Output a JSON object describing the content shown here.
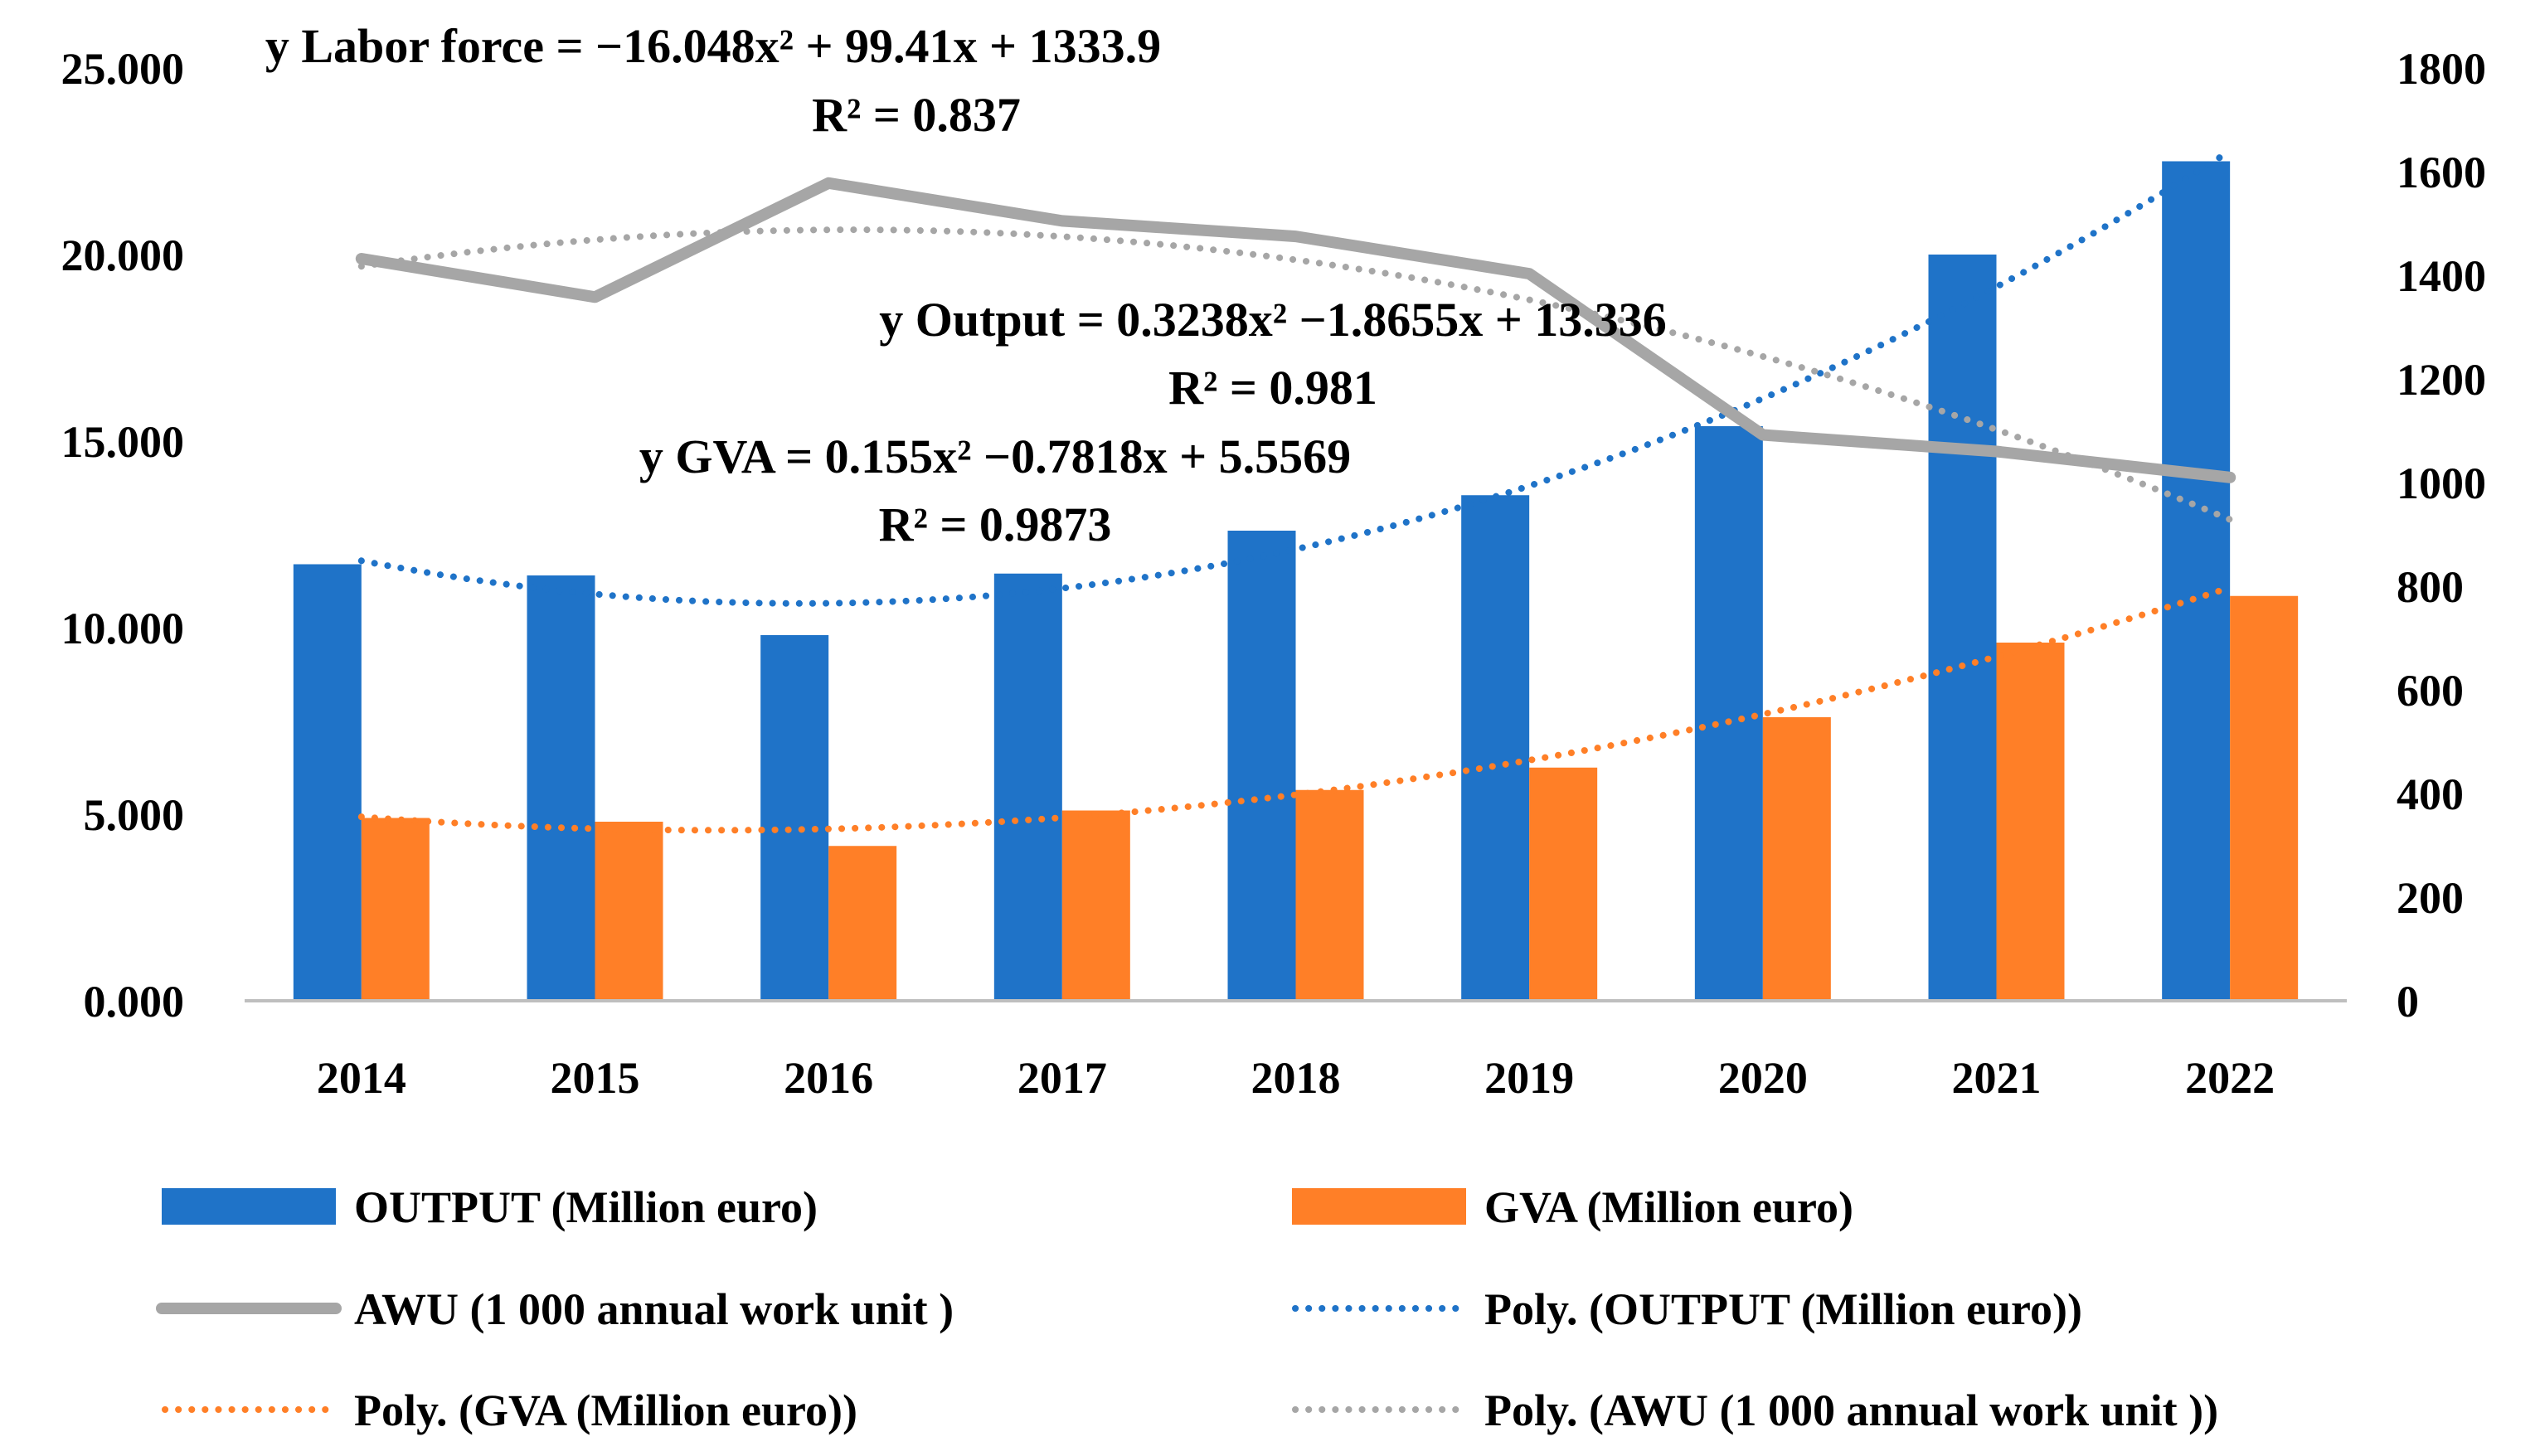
{
  "chart_data": {
    "type": "bar",
    "categories": [
      "2014",
      "2015",
      "2016",
      "2017",
      "2018",
      "2019",
      "2020",
      "2021",
      "2022"
    ],
    "series": [
      {
        "name": "OUTPUT (Million euro)",
        "kind": "bar",
        "axis": "left",
        "color": "#1F73C8",
        "values": [
          11.7,
          11.4,
          9.8,
          11.45,
          12.6,
          13.55,
          15.4,
          20.0,
          22.5
        ]
      },
      {
        "name": "GVA (Million euro)",
        "kind": "bar",
        "axis": "left",
        "color": "#FF7F27",
        "values": [
          4.9,
          4.8,
          4.15,
          5.1,
          5.65,
          6.25,
          7.6,
          9.6,
          10.85
        ]
      },
      {
        "name": "AWU (1 000 annual work unit )",
        "kind": "line",
        "axis": "right",
        "color": "#A6A6A6",
        "values": [
          1432,
          1358,
          1578,
          1505,
          1475,
          1403,
          1092,
          1060,
          1010
        ]
      }
    ],
    "trendlines": [
      {
        "name": "Poly. (OUTPUT (Million euro))",
        "of": "OUTPUT (Million euro)",
        "axis": "left",
        "color": "#1F73C8",
        "coef": [
          0.3238,
          -1.8655,
          13.336
        ],
        "equation": "y Output = 0.3238x² −1.8655x + 13.336",
        "r2": "R² = 0.981"
      },
      {
        "name": "Poly. (GVA (Million euro))",
        "of": "GVA (Million euro)",
        "axis": "left",
        "color": "#FF7F27",
        "coef": [
          0.155,
          -0.7818,
          5.5569
        ],
        "equation": "y GVA = 0.155x² −0.7818x + 5.5569",
        "r2": "R² = 0.9873"
      },
      {
        "name": "Poly. (AWU (1 000 annual work unit ))",
        "of": "AWU (1 000 annual work unit )",
        "axis": "right",
        "color": "#A6A6A6",
        "coef": [
          -16.048,
          99.41,
          1333.9
        ],
        "equation": "y Labor force = −16.048x² + 99.41x + 1333.9",
        "r2": "R² = 0.837"
      }
    ],
    "y_left": {
      "ylim": [
        0,
        25
      ],
      "ticks": [
        0,
        5,
        10,
        15,
        20,
        25
      ],
      "tick_labels": [
        "0.000",
        "5.000",
        "10.000",
        "15.000",
        "20.000",
        "25.000"
      ]
    },
    "y_right": {
      "ylim": [
        0,
        1800
      ],
      "ticks": [
        0,
        200,
        400,
        600,
        800,
        1000,
        1200,
        1400,
        1600,
        1800
      ],
      "tick_labels": [
        "0",
        "200",
        "400",
        "600",
        "800",
        "1000",
        "1200",
        "1400",
        "1600",
        "1800"
      ]
    },
    "title": "",
    "xlabel": "",
    "ylabel": "",
    "legend": {
      "position": "bottom",
      "columns": 2,
      "entries": [
        {
          "label": "OUTPUT (Million euro)",
          "style": "bar",
          "color": "#1F73C8"
        },
        {
          "label": "GVA (Million euro)",
          "style": "bar",
          "color": "#FF7F27"
        },
        {
          "label": "AWU (1 000 annual work unit )",
          "style": "line",
          "color": "#A6A6A6"
        },
        {
          "label": "Poly. (OUTPUT (Million euro))",
          "style": "dotted",
          "color": "#1F73C8"
        },
        {
          "label": "Poly. (GVA (Million euro))",
          "style": "dotted",
          "color": "#FF7F27"
        },
        {
          "label": "Poly. (AWU (1 000 annual work unit ))",
          "style": "dotted",
          "color": "#A6A6A6"
        }
      ]
    }
  }
}
